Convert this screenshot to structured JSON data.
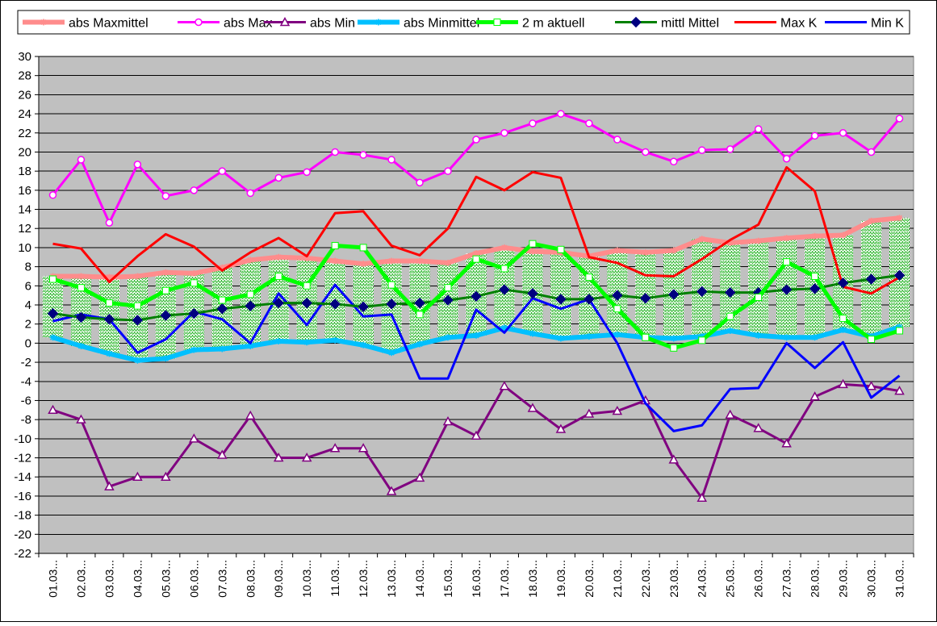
{
  "chart_data": {
    "type": "line",
    "categories": [
      "01.03...",
      "02.03...",
      "03.03...",
      "04.03...",
      "05.03...",
      "06.03...",
      "07.03...",
      "08.03...",
      "09.03...",
      "10.03...",
      "11.03...",
      "12.03...",
      "13.03...",
      "14.03...",
      "15.03...",
      "16.03...",
      "17.03...",
      "18.03...",
      "19.03...",
      "20.03...",
      "21.03...",
      "22.03...",
      "23.03...",
      "24.03...",
      "25.03...",
      "26.03...",
      "27.03...",
      "28.03...",
      "29.03...",
      "30.03...",
      "31.03..."
    ],
    "ylim": [
      -22,
      30
    ],
    "yticks": [
      30,
      28,
      26,
      24,
      22,
      20,
      18,
      16,
      14,
      12,
      10,
      8,
      6,
      4,
      2,
      0,
      -2,
      -4,
      -6,
      -8,
      -10,
      -12,
      -14,
      -16,
      -18,
      -20,
      -22
    ],
    "grid": true,
    "legend_position": "top",
    "band": {
      "pattern_colors": {
        "fg": "#00a800",
        "bg": "#ffffff"
      }
    },
    "series": [
      {
        "name": "abs Maxmittel",
        "color": "#ff8c8c",
        "marker": "star",
        "width": 6,
        "values": [
          7.0,
          7.0,
          6.9,
          7.0,
          7.4,
          7.3,
          7.9,
          8.7,
          9.0,
          8.9,
          8.6,
          8.3,
          8.6,
          8.6,
          8.4,
          9.4,
          10.0,
          9.6,
          9.5,
          9.1,
          9.7,
          9.5,
          9.7,
          10.9,
          10.5,
          10.7,
          11.0,
          11.2,
          11.3,
          12.8,
          13.1
        ]
      },
      {
        "name": "abs Max",
        "color": "#ff00ff",
        "marker": "circle",
        "width": 3,
        "values": [
          15.5,
          19.2,
          12.6,
          18.7,
          15.4,
          16.0,
          18.0,
          15.7,
          17.3,
          17.9,
          20.0,
          19.7,
          19.2,
          16.8,
          18.0,
          21.3,
          22.0,
          23.0,
          24.0,
          23.0,
          21.3,
          20.0,
          19.0,
          20.2,
          20.3,
          22.4,
          19.3,
          21.7,
          22.0,
          20.0,
          23.5
        ]
      },
      {
        "name": "abs Min",
        "color": "#800080",
        "marker": "triangle",
        "width": 3,
        "values": [
          -7.0,
          -8.0,
          -15.0,
          -14.0,
          -14.0,
          -10.0,
          -11.7,
          -7.6,
          -12.0,
          -12.0,
          -11.0,
          -11.0,
          -15.5,
          -14.1,
          -8.2,
          -9.7,
          -4.5,
          -6.8,
          -9.0,
          -7.4,
          -7.1,
          -6.0,
          -12.2,
          -16.2,
          -7.5,
          -8.9,
          -10.5,
          -5.6,
          -4.3,
          -4.5,
          -5.0
        ]
      },
      {
        "name": "abs Minmittel",
        "color": "#00c0ff",
        "marker": "star",
        "width": 6,
        "values": [
          0.6,
          -0.3,
          -1.1,
          -1.8,
          -1.6,
          -0.7,
          -0.6,
          -0.3,
          0.2,
          0.1,
          0.3,
          -0.2,
          -1.0,
          -0.1,
          0.6,
          0.8,
          1.6,
          1.0,
          0.5,
          0.7,
          0.9,
          0.6,
          0.5,
          0.7,
          1.3,
          0.8,
          0.6,
          0.6,
          1.4,
          0.7,
          1.7
        ]
      },
      {
        "name": "2 m aktuell",
        "color": "#00ff00",
        "marker": "square",
        "width": 5,
        "values": [
          6.7,
          5.8,
          4.2,
          3.9,
          5.5,
          6.3,
          4.5,
          5.1,
          7.0,
          6.0,
          10.2,
          10.0,
          6.1,
          3.0,
          5.8,
          8.8,
          7.8,
          10.4,
          9.8,
          6.9,
          3.6,
          0.6,
          -0.5,
          0.3,
          2.8,
          4.8,
          8.5,
          7.0,
          2.6,
          0.4,
          1.3
        ]
      },
      {
        "name": "mittl Mittel",
        "color": "#008000",
        "marker": "diamond",
        "width": 3,
        "values": [
          3.1,
          2.7,
          2.5,
          2.4,
          2.9,
          3.1,
          3.6,
          3.9,
          4.2,
          4.2,
          4.1,
          3.8,
          4.1,
          4.2,
          4.5,
          4.9,
          5.6,
          5.2,
          4.6,
          4.6,
          5.0,
          4.7,
          5.1,
          5.4,
          5.3,
          5.3,
          5.6,
          5.7,
          6.3,
          6.7,
          7.1
        ]
      },
      {
        "name": "Max K",
        "color": "#ff0000",
        "marker": "none",
        "width": 3,
        "values": [
          10.4,
          9.9,
          6.4,
          9.1,
          11.4,
          10.1,
          7.6,
          9.5,
          11.0,
          9.1,
          13.6,
          13.8,
          10.2,
          9.2,
          12.0,
          17.4,
          16.0,
          17.9,
          17.3,
          9.0,
          8.4,
          7.1,
          7.0,
          8.8,
          10.8,
          12.4,
          18.4,
          15.9,
          5.9,
          5.2,
          6.9
        ]
      },
      {
        "name": "Min K",
        "color": "#0000ff",
        "marker": "none",
        "width": 3,
        "values": [
          2.3,
          3.0,
          2.5,
          -1.0,
          0.4,
          3.3,
          2.5,
          0.0,
          5.2,
          1.9,
          6.1,
          2.8,
          3.0,
          -3.7,
          -3.7,
          3.5,
          1.1,
          4.7,
          3.6,
          4.6,
          0.0,
          -6.3,
          -9.2,
          -8.6,
          -4.8,
          -4.7,
          0.0,
          -2.6,
          0.1,
          -5.7,
          -3.4
        ]
      }
    ]
  }
}
